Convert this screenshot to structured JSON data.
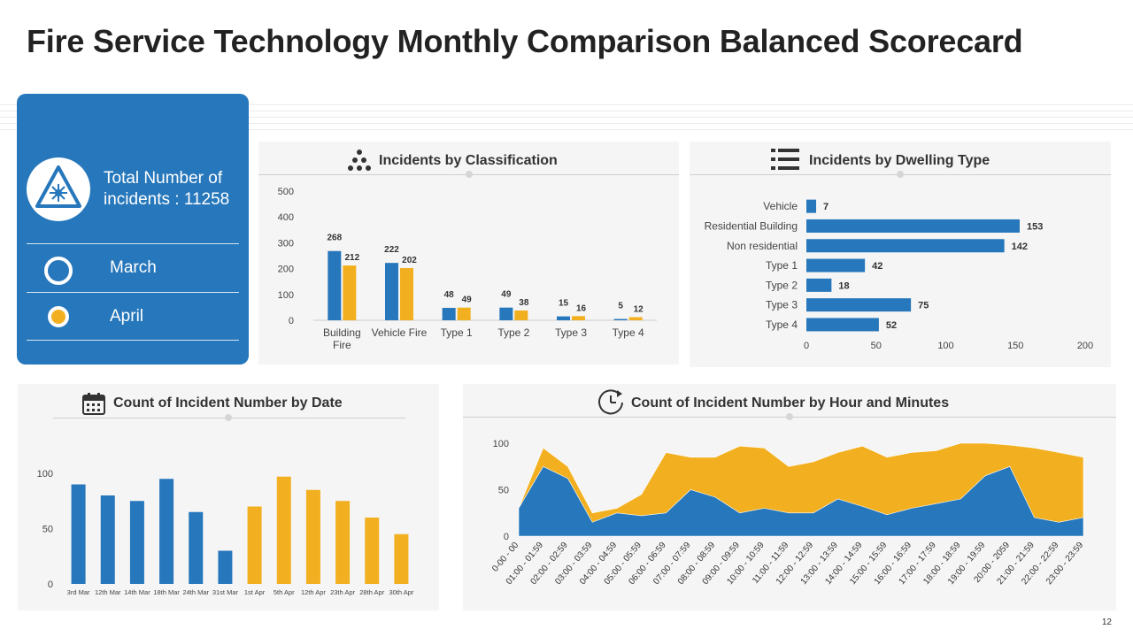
{
  "title": "Fire Service Technology Monthly Comparison Balanced Scorecard",
  "page_number": "12",
  "sidebar": {
    "total_line1": "Total Number of",
    "total_line2": "incidents : 11258",
    "legend": [
      {
        "label": "March",
        "color": "#2677bb"
      },
      {
        "label": "April",
        "color": "#f2b021"
      }
    ]
  },
  "colors": {
    "march": "#2677bb",
    "april": "#f2b021"
  },
  "chart_data": [
    {
      "type": "bar",
      "title": "Incidents by Classification",
      "categories": [
        "Building Fire",
        "Vehicle Fire",
        "Type 1",
        "Type 2",
        "Type 3",
        "Type 4"
      ],
      "series": [
        {
          "name": "March",
          "values": [
            268,
            222,
            48,
            49,
            15,
            5
          ]
        },
        {
          "name": "April",
          "values": [
            212,
            202,
            49,
            38,
            16,
            12
          ]
        }
      ],
      "yticks": [
        0,
        100,
        200,
        300,
        400,
        500
      ],
      "ylim": [
        0,
        500
      ]
    },
    {
      "type": "bar",
      "orientation": "horizontal",
      "title": "Incidents by Dwelling Type",
      "categories": [
        "Vehicle",
        "Residential Building",
        "Non residential",
        "Type 1",
        "Type 2",
        "Type 3",
        "Type 4"
      ],
      "values": [
        7,
        153,
        142,
        42,
        18,
        75,
        52
      ],
      "xticks": [
        0,
        50,
        100,
        150,
        200
      ],
      "xlim": [
        0,
        200
      ]
    },
    {
      "type": "bar",
      "title": "Count of Incident Number by Date",
      "categories": [
        "3rd Mar",
        "12th Mar",
        "14th Mar",
        "18th Mar",
        "24th Mar",
        "31st Mar",
        "1st Apr",
        "5th Apr",
        "12th Apr",
        "23th Apr",
        "28th Apr",
        "30th Apr"
      ],
      "values": [
        90,
        80,
        75,
        95,
        65,
        30,
        70,
        97,
        85,
        75,
        60,
        45
      ],
      "yticks": [
        0,
        50,
        100
      ],
      "ylim": [
        0,
        110
      ]
    },
    {
      "type": "area",
      "title": "Count of Incident Number by Hour and Minutes",
      "categories": [
        "0-00 - 00",
        "01:00 - 01:59",
        "02:00 - 02:59",
        "03:00 - 03:59",
        "04:00 - 04:59",
        "05:00 - 05:59",
        "06:00 - 06:59",
        "07:00 - 07:59",
        "08:00 - 08:59",
        "09:00 - 09:59",
        "10:00 - 10:59",
        "11:00 - 11:59",
        "12:00 - 12:59",
        "13:00 - 13:59",
        "14:00 - 14:59",
        "15:00 - 15:59",
        "16:00 - 16:59",
        "17:00 - 17:59",
        "18:00 - 18:59",
        "19:00 - 19:59",
        "20:00 - 2059",
        "21:00 - 21:59",
        "22:00 - 22:59",
        "23:00 - 23:59"
      ],
      "series": [
        {
          "name": "April",
          "values": [
            30,
            95,
            75,
            25,
            30,
            45,
            90,
            85,
            85,
            97,
            95,
            75,
            80,
            90,
            97,
            85,
            90,
            92,
            100,
            100,
            98,
            95,
            90,
            85
          ]
        },
        {
          "name": "March",
          "values": [
            30,
            75,
            62,
            15,
            25,
            22,
            25,
            50,
            42,
            25,
            30,
            25,
            25,
            40,
            32,
            23,
            30,
            35,
            40,
            65,
            75,
            20,
            15,
            20
          ]
        }
      ],
      "yticks": [
        0,
        50,
        100
      ],
      "ylim": [
        0,
        100
      ]
    }
  ]
}
